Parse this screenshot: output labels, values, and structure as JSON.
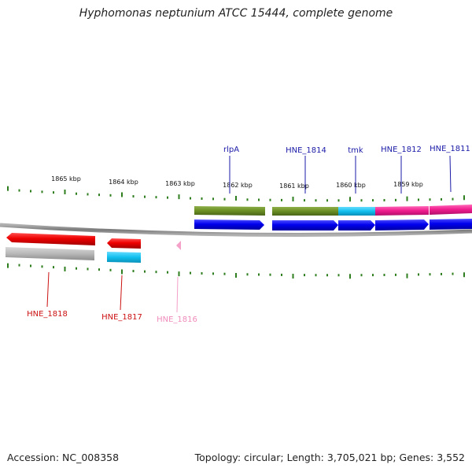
{
  "title": "Hyphomonas neptunium ATCC 15444, complete genome",
  "footer": {
    "accession": "Accession: NC_008358",
    "topology": "Topology: circular; Length: 3,705,021 bp; Genes: 3,552"
  },
  "colors": {
    "tick": "#2e7d1e",
    "backbone": "#8a8a8a",
    "forward_gene": "#0000ee",
    "forward_label": "#1a1aa8",
    "reverse_gene": "#ee0000",
    "reverse_label": "#cc1111",
    "gray_track": "#b8b8b8",
    "olive": "#6b8e23",
    "cyan": "#11c0ee",
    "magenta": "#ee1a8c",
    "pink": "#f4a0c8"
  },
  "kbp_labels": [
    "1865 kbp",
    "1864 kbp",
    "1863 kbp",
    "1862 kbp",
    "1861 kbp",
    "1860 kbp",
    "1859 kbp"
  ],
  "forward_labels": [
    "rlpA",
    "HNE_1814",
    "tmk",
    "HNE_1812",
    "HNE_1811"
  ],
  "reverse_labels": [
    "HNE_1818",
    "HNE_1817",
    "HNE_1816"
  ]
}
